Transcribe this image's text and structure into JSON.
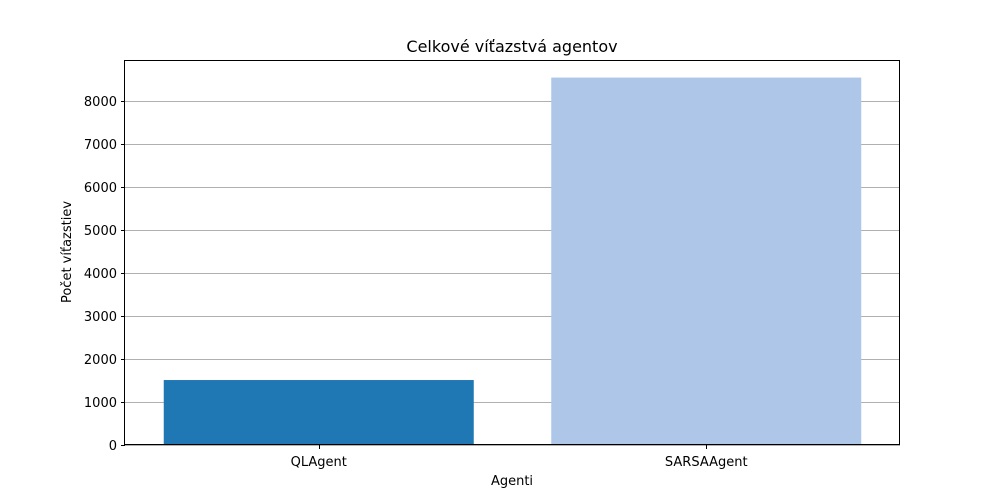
{
  "chart_data": {
    "type": "bar",
    "title": "Celkové víťazstvá agentov",
    "xlabel": "Agenti",
    "ylabel": "Počet víťazstiev",
    "categories": [
      "QLAgent",
      "SARSAAgent"
    ],
    "values": [
      1510,
      8540
    ],
    "colors": [
      "#1f77b4",
      "#aec7e8"
    ],
    "ylim": [
      0,
      8925
    ],
    "yticks": [
      0,
      1000,
      2000,
      3000,
      4000,
      5000,
      6000,
      7000,
      8000
    ],
    "grid": "y-axis",
    "grid_color": "#b0b0b0"
  }
}
